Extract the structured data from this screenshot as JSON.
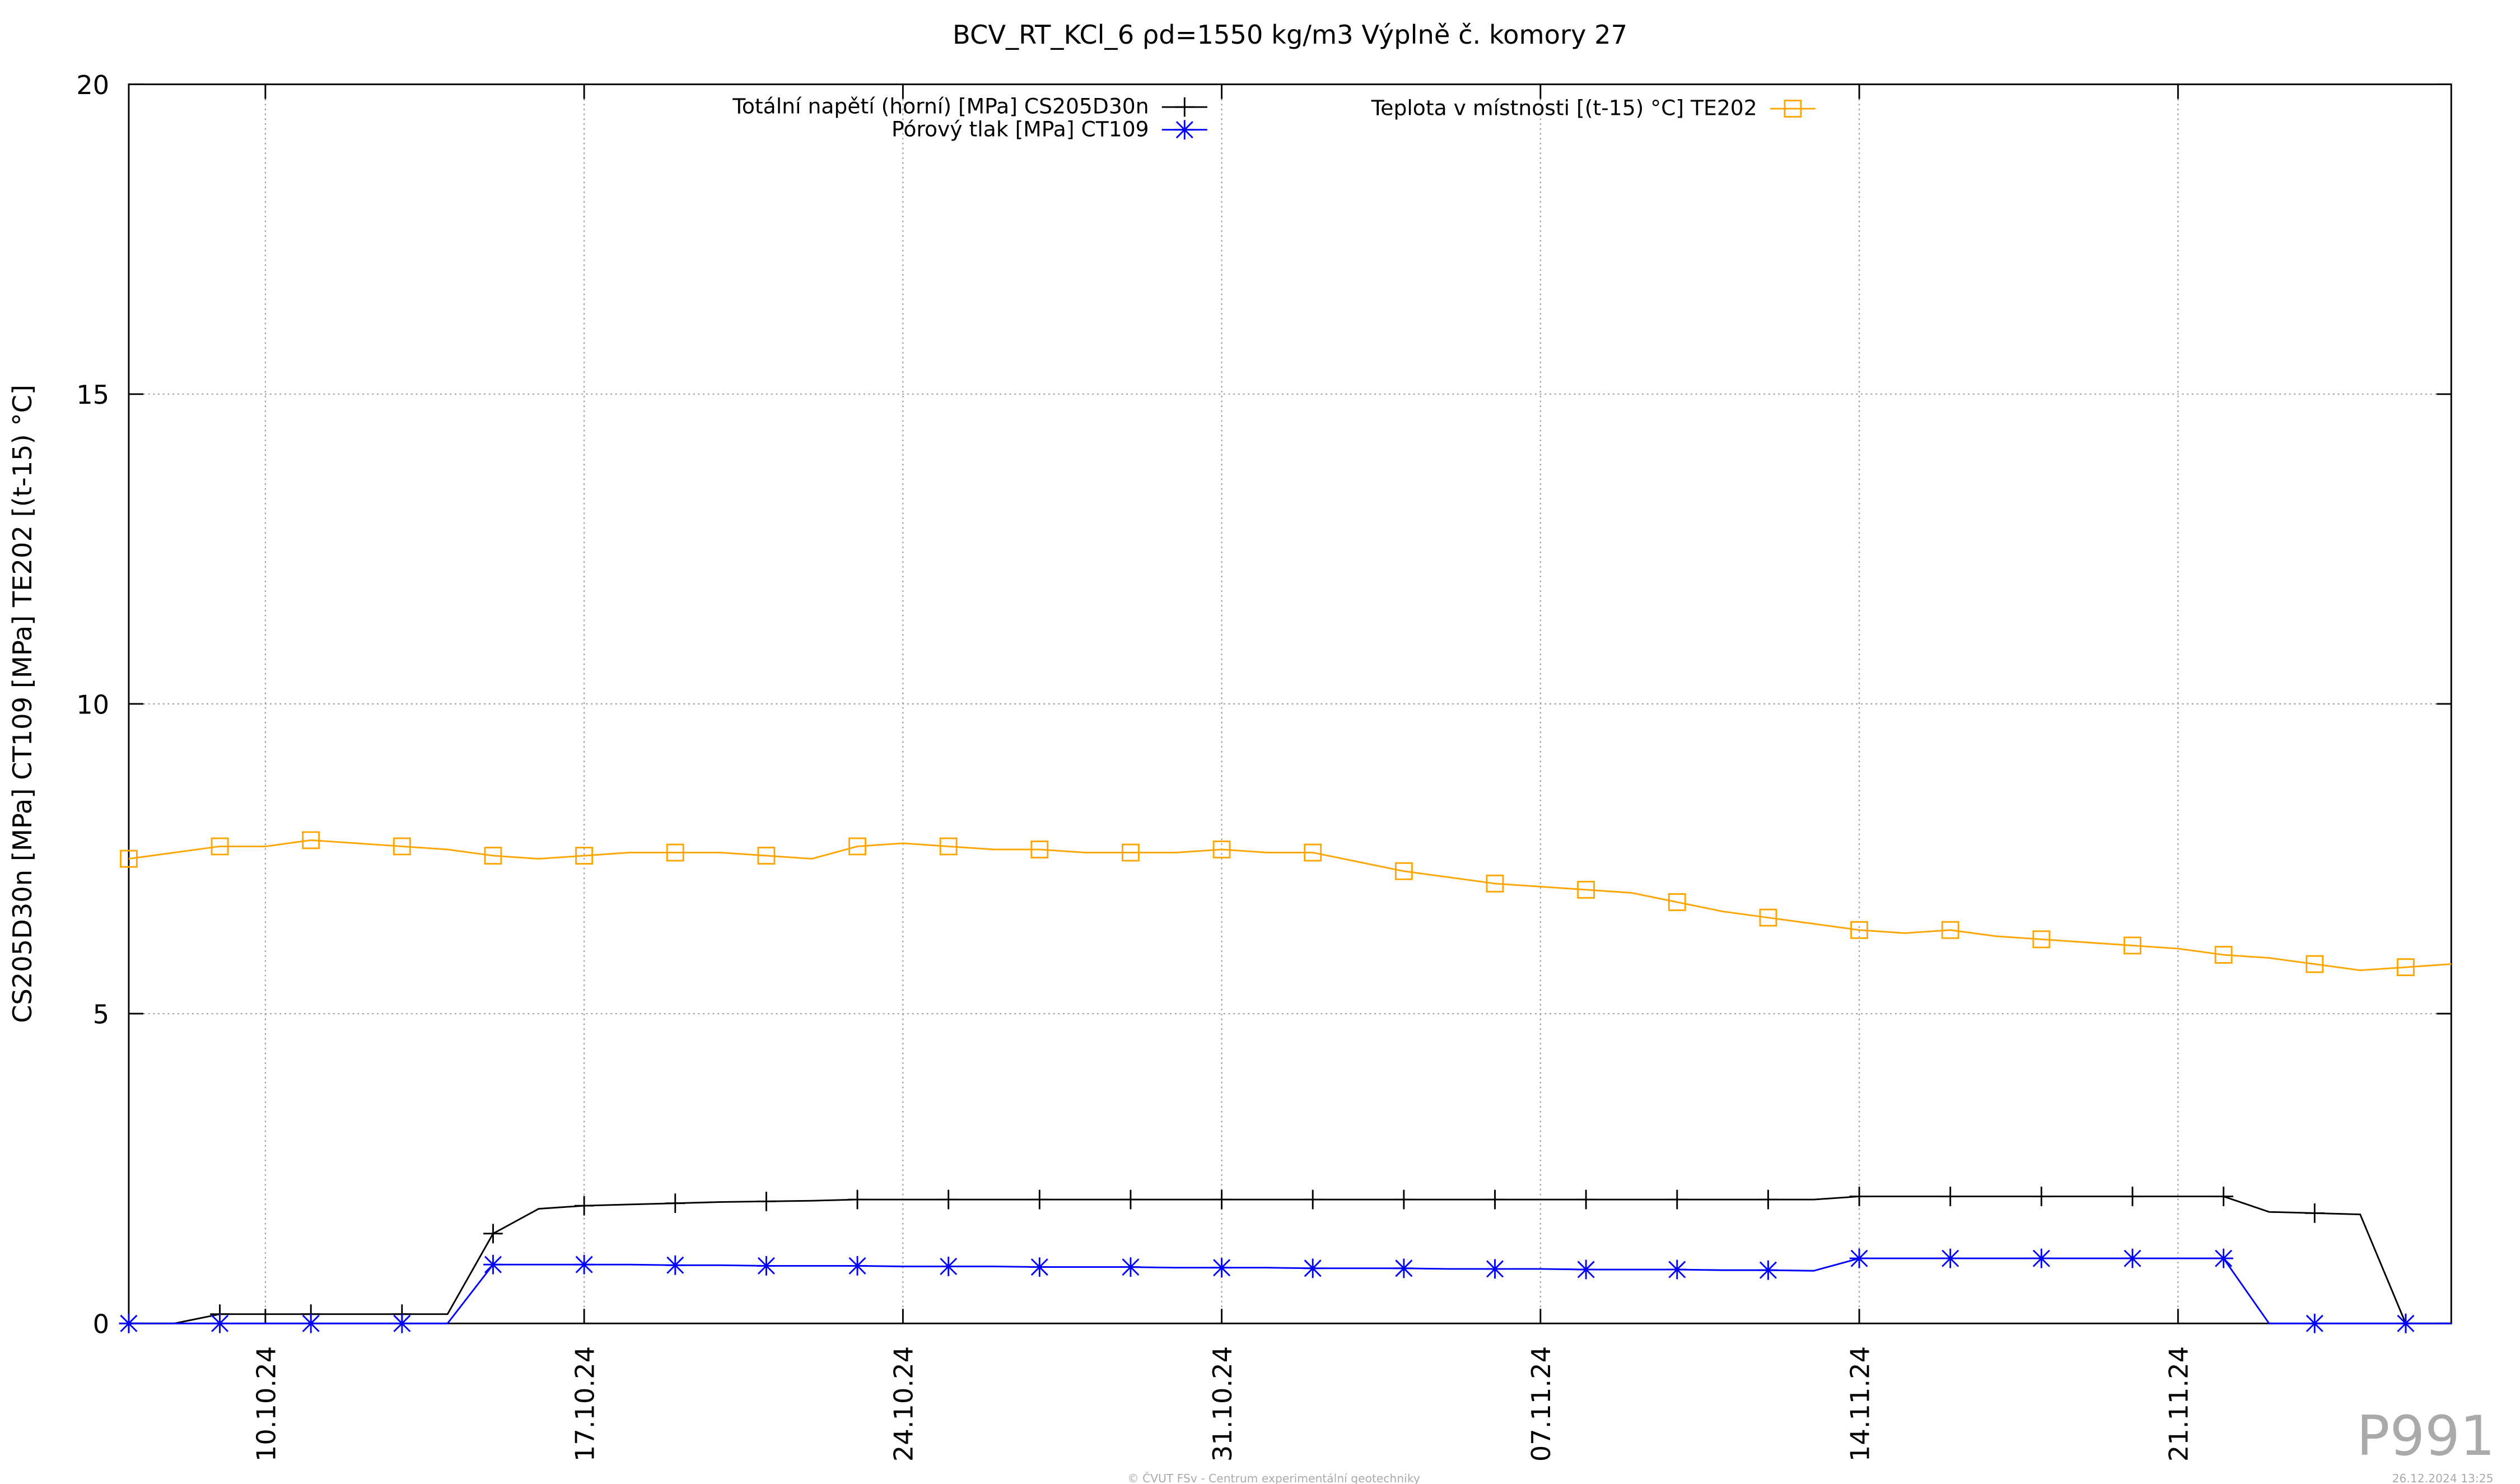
{
  "chart_data": {
    "type": "line",
    "title": "BCV_RT_KCl_6 ρd=1550 kg/m3 Výplně č. komory 27",
    "ylabel": "CS205D30n [MPa] CT109 [MPa] TE202 [(t-15) °C]",
    "x": [
      "07.10.24",
      "08.10.24",
      "09.10.24",
      "10.10.24",
      "11.10.24",
      "12.10.24",
      "13.10.24",
      "14.10.24",
      "15.10.24",
      "16.10.24",
      "17.10.24",
      "18.10.24",
      "19.10.24",
      "20.10.24",
      "21.10.24",
      "22.10.24",
      "23.10.24",
      "24.10.24",
      "25.10.24",
      "26.10.24",
      "27.10.24",
      "28.10.24",
      "29.10.24",
      "30.10.24",
      "31.10.24",
      "01.11.24",
      "02.11.24",
      "03.11.24",
      "04.11.24",
      "05.11.24",
      "06.11.24",
      "07.11.24",
      "08.11.24",
      "09.11.24",
      "10.11.24",
      "11.11.24",
      "12.11.24",
      "13.11.24",
      "14.11.24",
      "15.11.24",
      "16.11.24",
      "17.11.24",
      "18.11.24",
      "19.11.24",
      "20.11.24",
      "21.11.24",
      "22.11.24",
      "23.11.24",
      "24.11.24",
      "25.11.24",
      "26.11.24",
      "27.11.24"
    ],
    "series": [
      {
        "name": "Totální napětí (horní) [MPa] CS205D30n",
        "color": "#000000",
        "marker": "plus",
        "values": [
          0,
          0,
          0.15,
          0.15,
          0.15,
          0.15,
          0.15,
          0.15,
          1.45,
          1.85,
          1.9,
          1.92,
          1.94,
          1.96,
          1.97,
          1.98,
          2.0,
          2.0,
          2.0,
          2.0,
          2.0,
          2.0,
          2.0,
          2.0,
          2.0,
          2.0,
          2.0,
          2.0,
          2.0,
          2.0,
          2.0,
          2.0,
          2.0,
          2.0,
          2.0,
          2.0,
          2.0,
          2.0,
          2.05,
          2.05,
          2.05,
          2.05,
          2.05,
          2.05,
          2.05,
          2.05,
          2.05,
          1.8,
          1.78,
          1.76,
          0,
          0
        ]
      },
      {
        "name": "Pórový tlak [MPa] CT109",
        "color": "#0000ff",
        "marker": "star",
        "values": [
          0,
          0,
          0,
          0,
          0,
          0,
          0,
          0,
          0.95,
          0.95,
          0.95,
          0.95,
          0.94,
          0.94,
          0.93,
          0.93,
          0.93,
          0.92,
          0.92,
          0.92,
          0.91,
          0.91,
          0.91,
          0.9,
          0.9,
          0.9,
          0.89,
          0.89,
          0.89,
          0.88,
          0.88,
          0.88,
          0.87,
          0.87,
          0.87,
          0.86,
          0.86,
          0.85,
          1.05,
          1.05,
          1.05,
          1.05,
          1.05,
          1.05,
          1.05,
          1.05,
          1.05,
          0,
          0,
          0,
          0,
          0
        ]
      },
      {
        "name": "Teplota v místnosti [(t-15) °C] TE202",
        "color": "#ffa500",
        "marker": "square",
        "values": [
          7.5,
          7.6,
          7.7,
          7.7,
          7.8,
          7.75,
          7.7,
          7.65,
          7.55,
          7.5,
          7.55,
          7.6,
          7.6,
          7.6,
          7.55,
          7.5,
          7.7,
          7.75,
          7.7,
          7.65,
          7.65,
          7.6,
          7.6,
          7.6,
          7.65,
          7.6,
          7.6,
          7.45,
          7.3,
          7.2,
          7.1,
          7.05,
          7.0,
          6.95,
          6.8,
          6.65,
          6.55,
          6.45,
          6.35,
          6.3,
          6.35,
          6.25,
          6.2,
          6.15,
          6.1,
          6.05,
          5.95,
          5.9,
          5.8,
          5.7,
          5.75,
          5.8
        ]
      }
    ],
    "xlim": [
      "07.10.24",
      "27.11.24"
    ],
    "xticks": [
      "10.10.24",
      "17.10.24",
      "24.10.24",
      "31.10.24",
      "07.11.24",
      "14.11.24",
      "21.11.24"
    ],
    "ylim": [
      0,
      20
    ],
    "yticks": [
      0,
      5,
      10,
      15,
      20
    ],
    "grid": true,
    "legend": "top"
  },
  "footer": {
    "copyright": "© ČVUT FSv - Centrum experimentální geotechniky",
    "timestamp": "26.12.2024 13:25",
    "code": "P991"
  }
}
